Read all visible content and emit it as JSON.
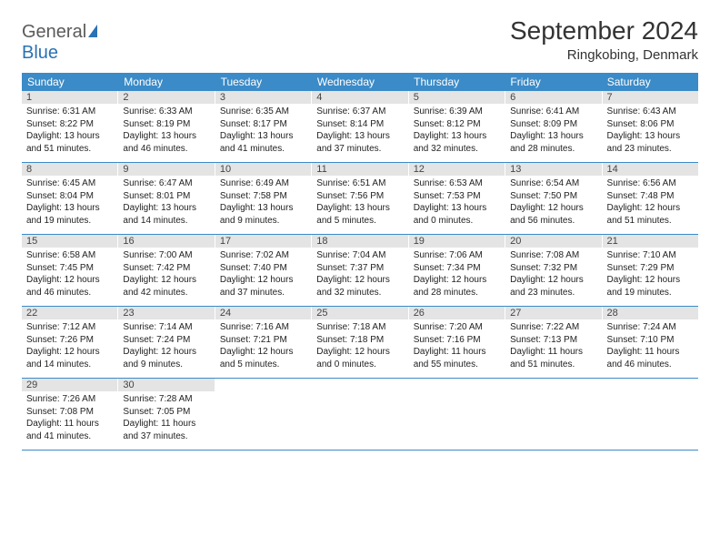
{
  "logo": {
    "part1": "General",
    "part2": "Blue"
  },
  "title": "September 2024",
  "location": "Ringkobing, Denmark",
  "colors": {
    "header_bg": "#3b8bc8",
    "header_text": "#ffffff",
    "daynum_bg": "#e4e4e4",
    "week_border": "#3b8bc8",
    "logo_accent": "#2a72b5",
    "logo_gray": "#5a5a5a"
  },
  "day_headers": [
    "Sunday",
    "Monday",
    "Tuesday",
    "Wednesday",
    "Thursday",
    "Friday",
    "Saturday"
  ],
  "weeks": [
    [
      {
        "n": "1",
        "sunrise": "6:31 AM",
        "sunset": "8:22 PM",
        "dayh": "13",
        "daym": "51"
      },
      {
        "n": "2",
        "sunrise": "6:33 AM",
        "sunset": "8:19 PM",
        "dayh": "13",
        "daym": "46"
      },
      {
        "n": "3",
        "sunrise": "6:35 AM",
        "sunset": "8:17 PM",
        "dayh": "13",
        "daym": "41"
      },
      {
        "n": "4",
        "sunrise": "6:37 AM",
        "sunset": "8:14 PM",
        "dayh": "13",
        "daym": "37"
      },
      {
        "n": "5",
        "sunrise": "6:39 AM",
        "sunset": "8:12 PM",
        "dayh": "13",
        "daym": "32"
      },
      {
        "n": "6",
        "sunrise": "6:41 AM",
        "sunset": "8:09 PM",
        "dayh": "13",
        "daym": "28"
      },
      {
        "n": "7",
        "sunrise": "6:43 AM",
        "sunset": "8:06 PM",
        "dayh": "13",
        "daym": "23"
      }
    ],
    [
      {
        "n": "8",
        "sunrise": "6:45 AM",
        "sunset": "8:04 PM",
        "dayh": "13",
        "daym": "19"
      },
      {
        "n": "9",
        "sunrise": "6:47 AM",
        "sunset": "8:01 PM",
        "dayh": "13",
        "daym": "14"
      },
      {
        "n": "10",
        "sunrise": "6:49 AM",
        "sunset": "7:58 PM",
        "dayh": "13",
        "daym": "9"
      },
      {
        "n": "11",
        "sunrise": "6:51 AM",
        "sunset": "7:56 PM",
        "dayh": "13",
        "daym": "5"
      },
      {
        "n": "12",
        "sunrise": "6:53 AM",
        "sunset": "7:53 PM",
        "dayh": "13",
        "daym": "0"
      },
      {
        "n": "13",
        "sunrise": "6:54 AM",
        "sunset": "7:50 PM",
        "dayh": "12",
        "daym": "56"
      },
      {
        "n": "14",
        "sunrise": "6:56 AM",
        "sunset": "7:48 PM",
        "dayh": "12",
        "daym": "51"
      }
    ],
    [
      {
        "n": "15",
        "sunrise": "6:58 AM",
        "sunset": "7:45 PM",
        "dayh": "12",
        "daym": "46"
      },
      {
        "n": "16",
        "sunrise": "7:00 AM",
        "sunset": "7:42 PM",
        "dayh": "12",
        "daym": "42"
      },
      {
        "n": "17",
        "sunrise": "7:02 AM",
        "sunset": "7:40 PM",
        "dayh": "12",
        "daym": "37"
      },
      {
        "n": "18",
        "sunrise": "7:04 AM",
        "sunset": "7:37 PM",
        "dayh": "12",
        "daym": "32"
      },
      {
        "n": "19",
        "sunrise": "7:06 AM",
        "sunset": "7:34 PM",
        "dayh": "12",
        "daym": "28"
      },
      {
        "n": "20",
        "sunrise": "7:08 AM",
        "sunset": "7:32 PM",
        "dayh": "12",
        "daym": "23"
      },
      {
        "n": "21",
        "sunrise": "7:10 AM",
        "sunset": "7:29 PM",
        "dayh": "12",
        "daym": "19"
      }
    ],
    [
      {
        "n": "22",
        "sunrise": "7:12 AM",
        "sunset": "7:26 PM",
        "dayh": "12",
        "daym": "14"
      },
      {
        "n": "23",
        "sunrise": "7:14 AM",
        "sunset": "7:24 PM",
        "dayh": "12",
        "daym": "9"
      },
      {
        "n": "24",
        "sunrise": "7:16 AM",
        "sunset": "7:21 PM",
        "dayh": "12",
        "daym": "5"
      },
      {
        "n": "25",
        "sunrise": "7:18 AM",
        "sunset": "7:18 PM",
        "dayh": "12",
        "daym": "0"
      },
      {
        "n": "26",
        "sunrise": "7:20 AM",
        "sunset": "7:16 PM",
        "dayh": "11",
        "daym": "55"
      },
      {
        "n": "27",
        "sunrise": "7:22 AM",
        "sunset": "7:13 PM",
        "dayh": "11",
        "daym": "51"
      },
      {
        "n": "28",
        "sunrise": "7:24 AM",
        "sunset": "7:10 PM",
        "dayh": "11",
        "daym": "46"
      }
    ],
    [
      {
        "n": "29",
        "sunrise": "7:26 AM",
        "sunset": "7:08 PM",
        "dayh": "11",
        "daym": "41"
      },
      {
        "n": "30",
        "sunrise": "7:28 AM",
        "sunset": "7:05 PM",
        "dayh": "11",
        "daym": "37"
      },
      null,
      null,
      null,
      null,
      null
    ]
  ]
}
